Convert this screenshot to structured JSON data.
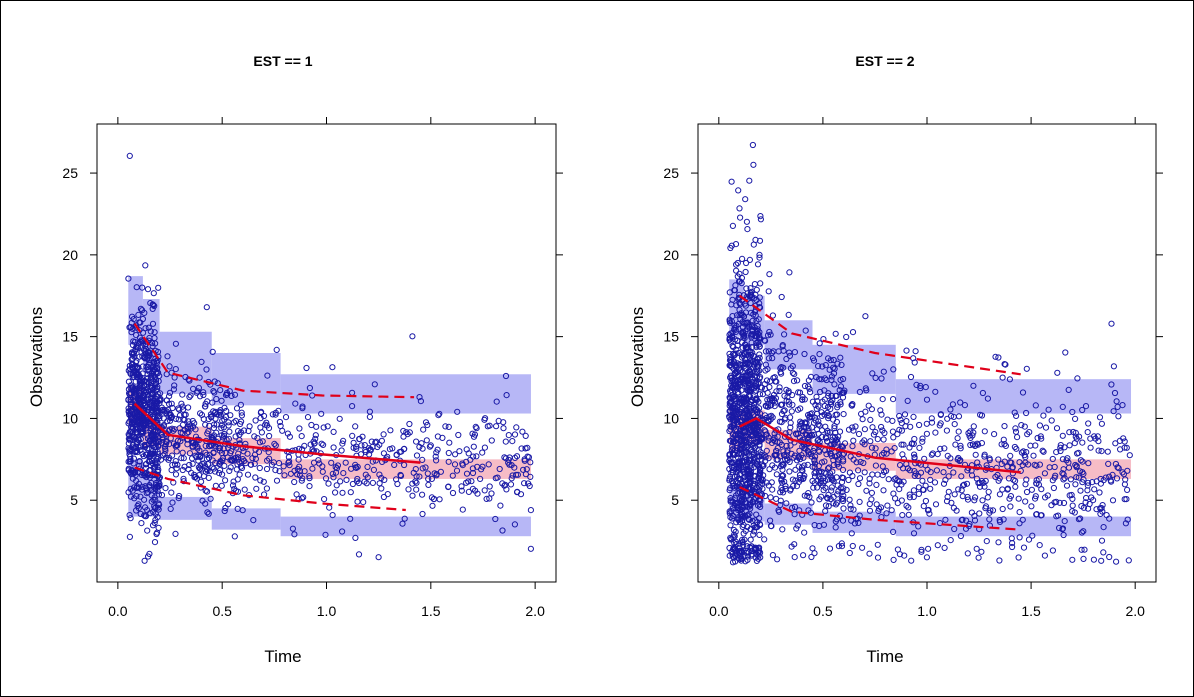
{
  "chart_data": [
    {
      "type": "scatter",
      "title": "EST == 1",
      "xlabel": "Time",
      "ylabel": "Observations",
      "xlim": [
        -0.1,
        2.1
      ],
      "ylim": [
        0,
        28
      ],
      "xticks": [
        "0.0",
        "0.5",
        "1.0",
        "1.5",
        "2.0"
      ],
      "yticks": [
        "5",
        "10",
        "15",
        "20",
        "25"
      ],
      "grid": false,
      "colors": {
        "points": "#1a1aa6",
        "band": "#aaaaf5",
        "median_band": "#f5b5c0",
        "lines": "#e0001a"
      },
      "pi_bands": {
        "bins": [
          [
            0.05,
            0.12
          ],
          [
            0.12,
            0.2
          ],
          [
            0.2,
            0.45
          ],
          [
            0.45,
            0.78
          ],
          [
            0.78,
            1.98
          ]
        ],
        "upper": [
          [
            14.5,
            18.7
          ],
          [
            12.8,
            17.3
          ],
          [
            11.5,
            15.3
          ],
          [
            10.8,
            14.0
          ],
          [
            10.3,
            12.7
          ]
        ],
        "median": [
          [
            9.7,
            12.0
          ],
          [
            8.3,
            10.0
          ],
          [
            7.8,
            9.5
          ],
          [
            7.2,
            8.8
          ],
          [
            6.3,
            7.5
          ]
        ],
        "lower": [
          [
            4.0,
            7.5
          ],
          [
            4.0,
            6.5
          ],
          [
            3.8,
            5.2
          ],
          [
            3.2,
            4.5
          ],
          [
            2.8,
            4.0
          ]
        ]
      },
      "obs_median": {
        "x": [
          0.08,
          0.24,
          0.6,
          0.98,
          1.45
        ],
        "y": [
          10.9,
          9.0,
          8.3,
          7.8,
          7.3
        ]
      },
      "obs_upper": {
        "x": [
          0.08,
          0.24,
          0.6,
          0.98,
          1.42
        ],
        "y": [
          15.8,
          12.8,
          11.7,
          11.4,
          11.3
        ]
      },
      "obs_lower": {
        "x": [
          0.08,
          0.24,
          0.6,
          0.98,
          1.38
        ],
        "y": [
          7.0,
          6.3,
          5.3,
          4.8,
          4.4
        ]
      }
    },
    {
      "type": "scatter",
      "title": "EST == 2",
      "xlabel": "Time",
      "ylabel": "Observations",
      "xlim": [
        -0.1,
        2.1
      ],
      "ylim": [
        0,
        28
      ],
      "xticks": [
        "0.0",
        "0.5",
        "1.0",
        "1.5",
        "2.0"
      ],
      "yticks": [
        "5",
        "10",
        "15",
        "20",
        "25"
      ],
      "grid": false,
      "colors": {
        "points": "#1a1aa6",
        "band": "#aaaaf5",
        "median_band": "#f5b5c0",
        "lines": "#e0001a"
      },
      "pi_bands": {
        "bins": [
          [
            0.05,
            0.12
          ],
          [
            0.12,
            0.22
          ],
          [
            0.22,
            0.45
          ],
          [
            0.45,
            0.85
          ],
          [
            0.85,
            1.98
          ]
        ],
        "upper": [
          [
            15.0,
            18.5
          ],
          [
            14.5,
            17.5
          ],
          [
            13.0,
            16.0
          ],
          [
            11.5,
            14.5
          ],
          [
            10.3,
            12.4
          ]
        ],
        "median": [
          [
            8.0,
            10.5
          ],
          [
            8.5,
            10.5
          ],
          [
            7.5,
            9.3
          ],
          [
            6.8,
            8.5
          ],
          [
            6.3,
            7.5
          ]
        ],
        "lower": [
          [
            3.7,
            6.0
          ],
          [
            3.7,
            5.5
          ],
          [
            3.5,
            4.8
          ],
          [
            3.0,
            4.3
          ],
          [
            2.8,
            4.0
          ]
        ]
      },
      "obs_median": {
        "x": [
          0.1,
          0.18,
          0.35,
          0.75,
          1.45
        ],
        "y": [
          9.5,
          10.0,
          8.7,
          7.6,
          6.7
        ]
      },
      "obs_upper": {
        "x": [
          0.1,
          0.35,
          0.75,
          1.45
        ],
        "y": [
          17.5,
          15.2,
          14.0,
          12.7
        ]
      },
      "obs_lower": {
        "x": [
          0.1,
          0.35,
          0.75,
          1.45
        ],
        "y": [
          5.8,
          4.3,
          3.8,
          3.2
        ]
      }
    }
  ]
}
